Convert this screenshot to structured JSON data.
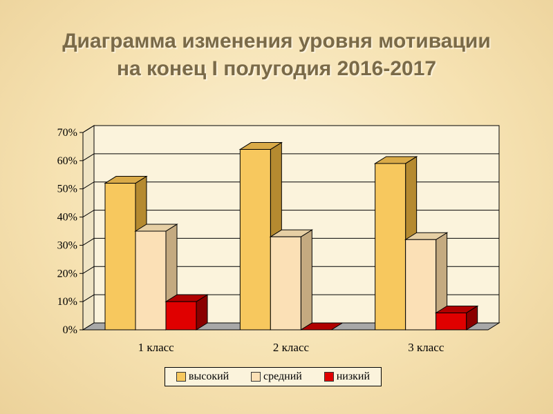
{
  "title": {
    "line1": "Диаграмма изменения уровня мотивации",
    "line2": "на конец I полугодия 2016-2017"
  },
  "colors": {
    "series": [
      "#f7c85e",
      "#fbe0b6",
      "#e00000"
    ],
    "series_dark": [
      "#b58a30",
      "#c4aa80",
      "#8a0000"
    ],
    "series_top": [
      "#d9aa48",
      "#e6cfa4",
      "#b00000"
    ],
    "wall": "#fbf3dc",
    "floor": "#a8a8a8"
  },
  "chart_data": {
    "type": "bar",
    "categories": [
      "1 класс",
      "2 класс",
      "3 класс"
    ],
    "series": [
      {
        "name": "высокий",
        "values": [
          52,
          64,
          59
        ]
      },
      {
        "name": "средний",
        "values": [
          35,
          33,
          32
        ]
      },
      {
        "name": "низкий",
        "values": [
          10,
          0,
          6
        ]
      }
    ],
    "y_ticks": [
      "0%",
      "10%",
      "20%",
      "30%",
      "40%",
      "50%",
      "60%",
      "70%"
    ],
    "ylim": [
      0,
      70
    ],
    "grid": true,
    "legend": "bottom"
  }
}
